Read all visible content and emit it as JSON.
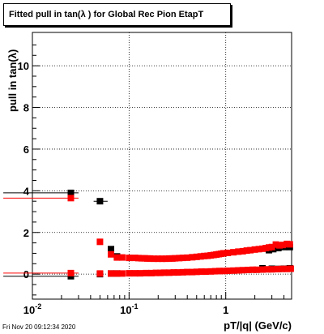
{
  "chart_data": {
    "type": "scatter",
    "title": "Fitted pull in tan(λ ) for Global Rec Pion EtapT",
    "xlabel": "pT/|q| (GeV/c)",
    "ylabel": "pull in tan(λ)",
    "xscale": "log",
    "xlim": [
      0.01,
      4.8
    ],
    "ylim": [
      -1.2,
      11.6
    ],
    "grid": true,
    "x_ticks": [
      {
        "value": 0.01,
        "base": "10",
        "exp": "-2"
      },
      {
        "value": 0.1,
        "base": "10",
        "exp": "-1"
      },
      {
        "value": 1,
        "base": "1",
        "exp": ""
      }
    ],
    "y_ticks": [
      0,
      2,
      4,
      6,
      8,
      10
    ],
    "series": [
      {
        "color": "#000000",
        "marker": "square",
        "points": [
          [
            0.025,
            3.9
          ],
          [
            0.05,
            3.5
          ],
          [
            0.065,
            1.2
          ],
          [
            0.075,
            0.85
          ],
          [
            2.8,
            1.15
          ],
          [
            3.1,
            1.2
          ],
          [
            3.5,
            1.25
          ],
          [
            4.0,
            1.3
          ],
          [
            4.6,
            1.3
          ],
          [
            0.025,
            -0.1
          ],
          [
            0.05,
            0.0
          ],
          [
            0.065,
            0.03
          ],
          [
            0.075,
            0.03
          ],
          [
            2.4,
            0.28
          ],
          [
            3.0,
            0.26
          ],
          [
            3.5,
            0.25
          ],
          [
            4.0,
            0.26
          ],
          [
            4.6,
            0.28
          ]
        ]
      },
      {
        "color": "#ff0000",
        "marker": "square",
        "points": [
          [
            0.025,
            3.65
          ],
          [
            0.05,
            1.55
          ],
          [
            0.065,
            0.95
          ],
          [
            0.075,
            0.8
          ],
          [
            0.085,
            0.8
          ],
          [
            0.1,
            0.78
          ],
          [
            0.115,
            0.78
          ],
          [
            0.125,
            0.77
          ],
          [
            0.135,
            0.76
          ],
          [
            0.145,
            0.76
          ],
          [
            0.155,
            0.75
          ],
          [
            0.165,
            0.75
          ],
          [
            0.18,
            0.74
          ],
          [
            0.2,
            0.74
          ],
          [
            0.22,
            0.74
          ],
          [
            0.24,
            0.74
          ],
          [
            0.26,
            0.75
          ],
          [
            0.28,
            0.75
          ],
          [
            0.3,
            0.76
          ],
          [
            0.33,
            0.77
          ],
          [
            0.36,
            0.78
          ],
          [
            0.4,
            0.79
          ],
          [
            0.45,
            0.81
          ],
          [
            0.5,
            0.83
          ],
          [
            0.55,
            0.85
          ],
          [
            0.6,
            0.87
          ],
          [
            0.65,
            0.88
          ],
          [
            0.7,
            0.9
          ],
          [
            0.75,
            0.92
          ],
          [
            0.8,
            0.94
          ],
          [
            0.85,
            0.96
          ],
          [
            0.9,
            0.98
          ],
          [
            0.95,
            1.0
          ],
          [
            1.05,
            1.02
          ],
          [
            1.2,
            1.05
          ],
          [
            1.35,
            1.08
          ],
          [
            1.5,
            1.1
          ],
          [
            1.65,
            1.13
          ],
          [
            1.8,
            1.15
          ],
          [
            2.0,
            1.18
          ],
          [
            2.2,
            1.2
          ],
          [
            2.4,
            1.22
          ],
          [
            2.6,
            1.25
          ],
          [
            2.8,
            1.28
          ],
          [
            3.0,
            1.3
          ],
          [
            3.3,
            1.42
          ],
          [
            3.6,
            1.38
          ],
          [
            3.9,
            1.4
          ],
          [
            4.3,
            1.45
          ],
          [
            4.6,
            1.43
          ],
          [
            0.025,
            0.05
          ],
          [
            0.05,
            0.03
          ],
          [
            0.065,
            0.03
          ],
          [
            0.075,
            0.03
          ],
          [
            0.085,
            0.03
          ],
          [
            0.1,
            0.04
          ],
          [
            0.115,
            0.04
          ],
          [
            0.13,
            0.04
          ],
          [
            0.15,
            0.05
          ],
          [
            0.17,
            0.05
          ],
          [
            0.19,
            0.06
          ],
          [
            0.21,
            0.06
          ],
          [
            0.23,
            0.07
          ],
          [
            0.26,
            0.07
          ],
          [
            0.29,
            0.08
          ],
          [
            0.32,
            0.08
          ],
          [
            0.36,
            0.09
          ],
          [
            0.4,
            0.1
          ],
          [
            0.45,
            0.1
          ],
          [
            0.5,
            0.11
          ],
          [
            0.56,
            0.12
          ],
          [
            0.62,
            0.12
          ],
          [
            0.7,
            0.13
          ],
          [
            0.78,
            0.14
          ],
          [
            0.86,
            0.15
          ],
          [
            0.95,
            0.15
          ],
          [
            1.05,
            0.16
          ],
          [
            1.2,
            0.17
          ],
          [
            1.35,
            0.18
          ],
          [
            1.5,
            0.19
          ],
          [
            1.7,
            0.2
          ],
          [
            1.9,
            0.21
          ],
          [
            2.1,
            0.21
          ],
          [
            2.4,
            0.22
          ],
          [
            2.7,
            0.23
          ],
          [
            3.0,
            0.23
          ],
          [
            3.4,
            0.24
          ],
          [
            3.8,
            0.25
          ],
          [
            4.3,
            0.25
          ],
          [
            4.7,
            0.26
          ]
        ]
      }
    ],
    "error_bars": [
      {
        "x": 0.025,
        "y": 3.9,
        "xerr": [
          0.005,
          0.03
        ],
        "color": "#000000"
      },
      {
        "x": 0.025,
        "y": 3.65,
        "xerr": [
          0.005,
          0.03
        ],
        "color": "#ff0000"
      },
      {
        "x": 0.05,
        "y": 3.5,
        "xerr": [
          0.043,
          0.06
        ],
        "color": "#000000"
      },
      {
        "x": 0.025,
        "y": -0.1,
        "xerr": [
          0.005,
          0.03
        ],
        "color": "#000000"
      },
      {
        "x": 0.025,
        "y": 0.05,
        "xerr": [
          0.005,
          0.03
        ],
        "color": "#ff0000"
      }
    ]
  },
  "timestamp": "Fri Nov 20 09:12:34 2020"
}
